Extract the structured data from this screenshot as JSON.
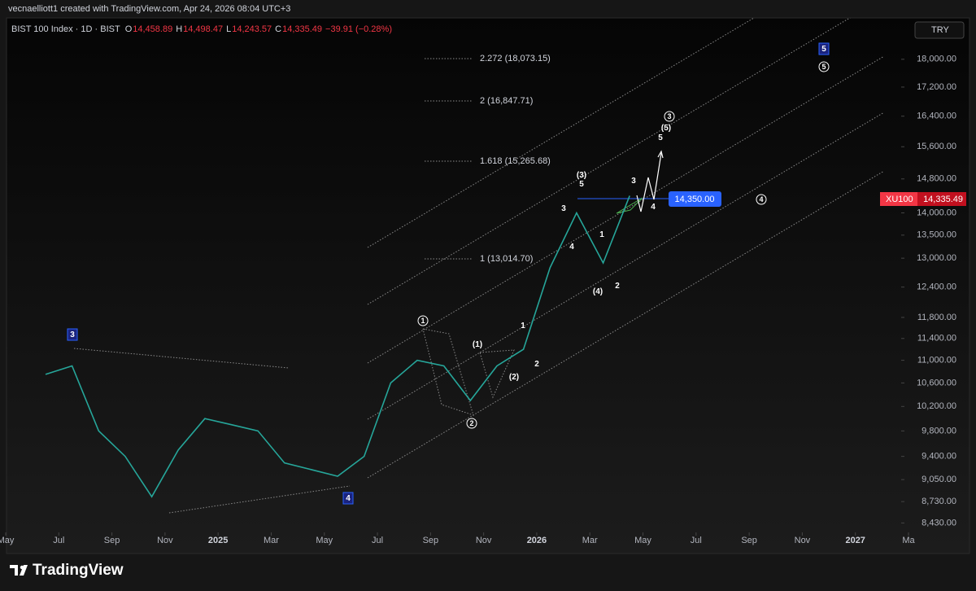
{
  "header": {
    "credit": "vecnaelliott1 created with TradingView.com, Apr 24, 2026 08:04 UTC+3"
  },
  "legend": {
    "symbol": "BIST 100 Index · 1D · BIST",
    "o_label": "O",
    "open": "14,458.89",
    "h_label": "H",
    "high": "14,498.47",
    "l_label": "L",
    "low": "14,243.57",
    "c_label": "C",
    "close": "14,335.49",
    "change": "−39.91 (−0.28%)"
  },
  "currency": "TRY",
  "chart_data": {
    "type": "line",
    "log_scale": true,
    "color": "#26a69a",
    "x": [
      "2024-06",
      "2024-07",
      "2024-08",
      "2024-09",
      "2024-10",
      "2024-11",
      "2024-12",
      "2025-01",
      "2025-02",
      "2025-03",
      "2025-04",
      "2025-05",
      "2025-06",
      "2025-07",
      "2025-08",
      "2025-09",
      "2025-10",
      "2025-11",
      "2025-12",
      "2026-01",
      "2026-02",
      "2026-03",
      "2026-04"
    ],
    "values": [
      10750,
      10900,
      9800,
      9400,
      8800,
      9500,
      10000,
      9900,
      9800,
      9300,
      9200,
      9100,
      9400,
      10600,
      11000,
      10900,
      10300,
      10900,
      11200,
      12800,
      14000,
      12900,
      14400
    ],
    "xlim": [
      "2024-05",
      "2027-03"
    ],
    "xticks": [
      {
        "value": "2024-05",
        "label": "May"
      },
      {
        "value": "2024-07",
        "label": "Jul"
      },
      {
        "value": "2024-09",
        "label": "Sep"
      },
      {
        "value": "2024-11",
        "label": "Nov"
      },
      {
        "value": "2025-01",
        "label": "2025"
      },
      {
        "value": "2025-03",
        "label": "Mar"
      },
      {
        "value": "2025-05",
        "label": "May"
      },
      {
        "value": "2025-07",
        "label": "Jul"
      },
      {
        "value": "2025-09",
        "label": "Sep"
      },
      {
        "value": "2025-11",
        "label": "Nov"
      },
      {
        "value": "2026-01",
        "label": "2026"
      },
      {
        "value": "2026-03",
        "label": "Mar"
      },
      {
        "value": "2026-05",
        "label": "May"
      },
      {
        "value": "2026-07",
        "label": "Jul"
      },
      {
        "value": "2026-09",
        "label": "Sep"
      },
      {
        "value": "2026-11",
        "label": "Nov"
      },
      {
        "value": "2027-01",
        "label": "2027"
      },
      {
        "value": "2027-03",
        "label": "Ma"
      }
    ],
    "ylim": [
      8290,
      19260
    ],
    "yticks": [
      {
        "value": 18000,
        "label": "18,000.00"
      },
      {
        "value": 17200,
        "label": "17,200.00"
      },
      {
        "value": 16400,
        "label": "16,400.00"
      },
      {
        "value": 15600,
        "label": "15,600.00"
      },
      {
        "value": 14800,
        "label": "14,800.00"
      },
      {
        "value": 14000,
        "label": "14,000.00"
      },
      {
        "value": 13500,
        "label": "13,500.00"
      },
      {
        "value": 13000,
        "label": "13,000.00"
      },
      {
        "value": 12400,
        "label": "12,400.00"
      },
      {
        "value": 11800,
        "label": "11,800.00"
      },
      {
        "value": 11400,
        "label": "11,400.00"
      },
      {
        "value": 11000,
        "label": "11,000.00"
      },
      {
        "value": 10600,
        "label": "10,600.00"
      },
      {
        "value": 10200,
        "label": "10,200.00"
      },
      {
        "value": 9800,
        "label": "9,800.00"
      },
      {
        "value": 9400,
        "label": "9,400.00"
      },
      {
        "value": 9050,
        "label": "9,050.00"
      },
      {
        "value": 8730,
        "label": "8,730.00"
      },
      {
        "value": 8430,
        "label": "8,430.00"
      }
    ]
  },
  "fib_levels": [
    "2.272 (18,073.15)",
    "2 (16,847.71)",
    "1.618 (15,265.68)",
    "1 (13,014.70)"
  ],
  "target": "14,350.00",
  "price_tag": {
    "symbol": "XU100",
    "price": "14,335.49"
  },
  "wave_labels": [
    {
      "text": "1",
      "style": "circle"
    },
    {
      "text": "2",
      "style": "circle"
    },
    {
      "text": "3",
      "style": "circle"
    },
    {
      "text": "4",
      "style": "circle"
    },
    {
      "text": "5",
      "style": "circle"
    },
    {
      "text": "3",
      "style": "box"
    },
    {
      "text": "4",
      "style": "box"
    },
    {
      "text": "5",
      "style": "box"
    },
    {
      "text": "(1)",
      "style": "plain"
    },
    {
      "text": "(2)",
      "style": "plain"
    },
    {
      "text": "(3)",
      "style": "plain"
    },
    {
      "text": "(4)",
      "style": "plain"
    },
    {
      "text": "(5)",
      "style": "plain"
    },
    {
      "text": "1",
      "style": "plain"
    },
    {
      "text": "2",
      "style": "plain"
    },
    {
      "text": "3",
      "style": "plain"
    },
    {
      "text": "4",
      "style": "plain"
    },
    {
      "text": "5",
      "style": "plain"
    },
    {
      "text": "1",
      "style": "plain"
    },
    {
      "text": "2",
      "style": "plain"
    },
    {
      "text": "3",
      "style": "plain"
    },
    {
      "text": "4",
      "style": "plain"
    },
    {
      "text": "5",
      "style": "plain"
    }
  ],
  "brand": "TradingView"
}
